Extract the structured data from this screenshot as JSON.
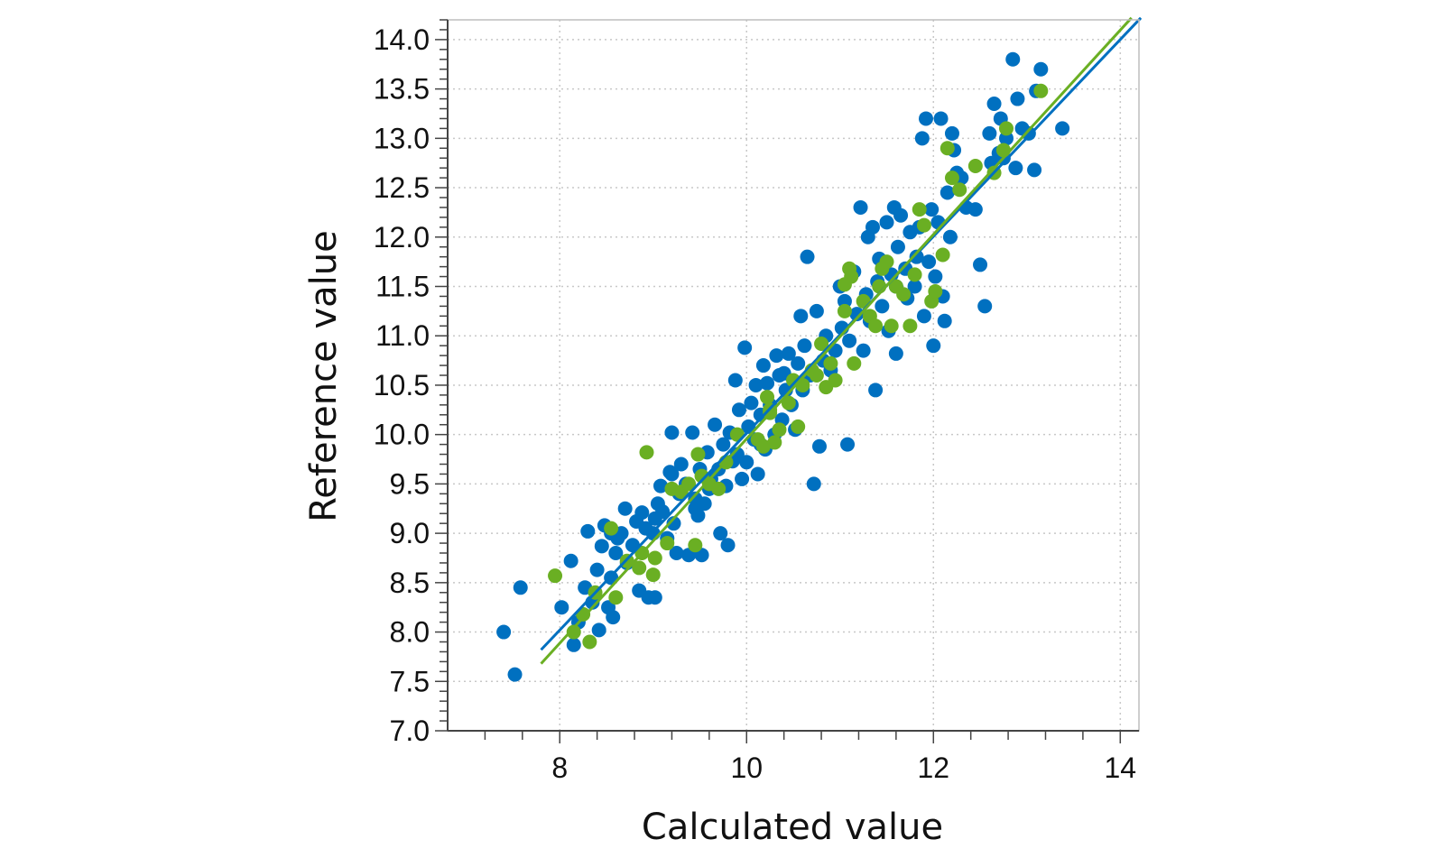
{
  "chart_data": {
    "type": "scatter",
    "xlabel": "Calculated value",
    "ylabel": "Reference value",
    "xlim": [
      6.8,
      14.2
    ],
    "ylim": [
      7.0,
      14.2
    ],
    "xticks": [
      "8",
      "10",
      "12",
      "14"
    ],
    "yticks": [
      "7.0",
      "7.5",
      "8.0",
      "8.5",
      "9.0",
      "9.5",
      "10.0",
      "10.5",
      "11.0",
      "11.5",
      "12.0",
      "12.5",
      "13.0",
      "13.5",
      "14.0"
    ],
    "grid": true,
    "legend": "none",
    "colors": {
      "calibration": "#0070C0",
      "validation": "#6AAF23"
    },
    "series": [
      {
        "color_key": "calibration",
        "points": [
          [
            7.4,
            8.0
          ],
          [
            7.52,
            7.57
          ],
          [
            7.58,
            8.45
          ],
          [
            8.02,
            8.25
          ],
          [
            8.12,
            8.72
          ],
          [
            8.15,
            7.87
          ],
          [
            8.2,
            8.1
          ],
          [
            8.3,
            9.02
          ],
          [
            8.27,
            8.45
          ],
          [
            8.35,
            8.3
          ],
          [
            8.4,
            8.63
          ],
          [
            8.42,
            8.02
          ],
          [
            8.45,
            8.87
          ],
          [
            8.48,
            9.08
          ],
          [
            8.52,
            8.25
          ],
          [
            8.55,
            8.55
          ],
          [
            8.57,
            8.15
          ],
          [
            8.6,
            8.8
          ],
          [
            8.62,
            8.95
          ],
          [
            8.66,
            9.0
          ],
          [
            8.7,
            9.25
          ],
          [
            8.72,
            8.7
          ],
          [
            8.78,
            8.88
          ],
          [
            8.82,
            9.12
          ],
          [
            8.85,
            8.42
          ],
          [
            8.88,
            9.21
          ],
          [
            8.92,
            9.05
          ],
          [
            8.95,
            8.35
          ],
          [
            9.0,
            9.0
          ],
          [
            9.02,
            9.15
          ],
          [
            9.02,
            8.35
          ],
          [
            9.05,
            9.3
          ],
          [
            9.08,
            9.48
          ],
          [
            9.1,
            9.22
          ],
          [
            9.15,
            8.95
          ],
          [
            9.18,
            9.62
          ],
          [
            9.2,
            10.02
          ],
          [
            9.22,
            9.1
          ],
          [
            9.25,
            8.8
          ],
          [
            9.28,
            9.4
          ],
          [
            9.3,
            9.7
          ],
          [
            9.35,
            9.5
          ],
          [
            9.38,
            8.78
          ],
          [
            9.42,
            10.02
          ],
          [
            9.45,
            9.35
          ],
          [
            9.48,
            9.18
          ],
          [
            9.5,
            9.65
          ],
          [
            9.52,
            8.78
          ],
          [
            9.55,
            9.3
          ],
          [
            9.58,
            9.82
          ],
          [
            9.62,
            9.55
          ],
          [
            9.66,
            10.1
          ],
          [
            9.7,
            9.65
          ],
          [
            9.72,
            9.0
          ],
          [
            9.75,
            9.9
          ],
          [
            9.78,
            9.48
          ],
          [
            9.8,
            8.88
          ],
          [
            9.82,
            10.02
          ],
          [
            9.85,
            9.73
          ],
          [
            9.88,
            10.55
          ],
          [
            9.9,
            9.8
          ],
          [
            9.92,
            10.25
          ],
          [
            9.95,
            9.55
          ],
          [
            9.98,
            10.88
          ],
          [
            10.0,
            9.72
          ],
          [
            10.02,
            10.08
          ],
          [
            10.05,
            10.32
          ],
          [
            10.08,
            9.95
          ],
          [
            10.1,
            10.5
          ],
          [
            10.12,
            9.6
          ],
          [
            10.15,
            10.2
          ],
          [
            10.18,
            10.7
          ],
          [
            10.2,
            9.85
          ],
          [
            10.22,
            10.52
          ],
          [
            10.25,
            10.3
          ],
          [
            10.3,
            10.0
          ],
          [
            10.32,
            10.8
          ],
          [
            10.35,
            10.6
          ],
          [
            10.38,
            10.15
          ],
          [
            10.42,
            10.45
          ],
          [
            10.45,
            10.82
          ],
          [
            10.48,
            10.3
          ],
          [
            10.52,
            10.05
          ],
          [
            10.55,
            10.72
          ],
          [
            10.58,
            11.2
          ],
          [
            10.6,
            10.45
          ],
          [
            10.62,
            10.9
          ],
          [
            10.65,
            11.8
          ],
          [
            10.68,
            10.6
          ],
          [
            10.72,
            9.5
          ],
          [
            10.75,
            11.25
          ],
          [
            10.78,
            9.88
          ],
          [
            10.82,
            10.75
          ],
          [
            10.85,
            11.0
          ],
          [
            10.9,
            10.65
          ],
          [
            10.95,
            10.85
          ],
          [
            11.0,
            11.5
          ],
          [
            11.02,
            11.08
          ],
          [
            11.05,
            11.35
          ],
          [
            11.08,
            9.9
          ],
          [
            11.1,
            10.95
          ],
          [
            11.15,
            11.65
          ],
          [
            11.18,
            11.22
          ],
          [
            11.22,
            12.3
          ],
          [
            11.25,
            10.85
          ],
          [
            11.28,
            11.42
          ],
          [
            11.3,
            12.0
          ],
          [
            11.32,
            11.15
          ],
          [
            11.35,
            12.1
          ],
          [
            11.38,
            10.45
          ],
          [
            11.4,
            11.55
          ],
          [
            11.42,
            11.78
          ],
          [
            11.45,
            11.3
          ],
          [
            11.5,
            12.15
          ],
          [
            11.52,
            11.05
          ],
          [
            11.55,
            11.62
          ],
          [
            11.58,
            12.3
          ],
          [
            11.6,
            10.82
          ],
          [
            11.62,
            11.9
          ],
          [
            11.65,
            12.22
          ],
          [
            11.7,
            11.68
          ],
          [
            11.72,
            11.38
          ],
          [
            11.75,
            12.05
          ],
          [
            11.8,
            11.5
          ],
          [
            11.82,
            11.8
          ],
          [
            11.85,
            12.1
          ],
          [
            11.88,
            13.0
          ],
          [
            11.9,
            11.2
          ],
          [
            11.92,
            13.2
          ],
          [
            11.95,
            11.75
          ],
          [
            11.98,
            12.28
          ],
          [
            12.0,
            10.9
          ],
          [
            12.02,
            11.6
          ],
          [
            12.05,
            12.15
          ],
          [
            12.08,
            13.2
          ],
          [
            12.1,
            11.4
          ],
          [
            12.12,
            11.15
          ],
          [
            12.15,
            12.45
          ],
          [
            12.18,
            12.0
          ],
          [
            12.2,
            13.05
          ],
          [
            12.22,
            12.88
          ],
          [
            12.25,
            12.65
          ],
          [
            12.3,
            12.6
          ],
          [
            12.35,
            12.3
          ],
          [
            12.45,
            12.28
          ],
          [
            12.5,
            11.72
          ],
          [
            12.55,
            11.3
          ],
          [
            12.6,
            13.05
          ],
          [
            12.62,
            12.75
          ],
          [
            12.65,
            13.35
          ],
          [
            12.7,
            12.85
          ],
          [
            12.72,
            13.2
          ],
          [
            12.75,
            12.8
          ],
          [
            12.78,
            13.0
          ],
          [
            12.85,
            13.8
          ],
          [
            12.88,
            12.7
          ],
          [
            12.9,
            13.4
          ],
          [
            12.95,
            13.1
          ],
          [
            13.02,
            13.05
          ],
          [
            13.08,
            12.68
          ],
          [
            13.1,
            13.48
          ],
          [
            13.15,
            13.7
          ],
          [
            13.38,
            13.1
          ],
          [
            9.45,
            9.25
          ],
          [
            10.4,
            10.62
          ],
          [
            11.6,
            11.5
          ],
          [
            10.15,
            9.9
          ],
          [
            9.2,
            9.6
          ],
          [
            8.55,
            9.0
          ],
          [
            9.6,
            9.45
          ]
        ]
      },
      {
        "color_key": "validation",
        "points": [
          [
            7.95,
            8.57
          ],
          [
            8.15,
            8.0
          ],
          [
            8.25,
            8.18
          ],
          [
            8.32,
            7.9
          ],
          [
            8.38,
            8.4
          ],
          [
            8.55,
            9.05
          ],
          [
            8.6,
            8.35
          ],
          [
            8.72,
            8.72
          ],
          [
            8.85,
            8.65
          ],
          [
            8.88,
            8.8
          ],
          [
            8.93,
            9.82
          ],
          [
            9.0,
            8.58
          ],
          [
            9.02,
            8.75
          ],
          [
            9.15,
            8.9
          ],
          [
            9.2,
            9.45
          ],
          [
            9.3,
            9.42
          ],
          [
            9.38,
            9.5
          ],
          [
            9.45,
            8.88
          ],
          [
            9.48,
            9.8
          ],
          [
            9.52,
            9.58
          ],
          [
            9.6,
            9.5
          ],
          [
            9.7,
            9.45
          ],
          [
            9.78,
            9.72
          ],
          [
            9.9,
            10.0
          ],
          [
            10.12,
            9.95
          ],
          [
            10.18,
            9.88
          ],
          [
            10.22,
            10.38
          ],
          [
            10.25,
            10.22
          ],
          [
            10.3,
            9.92
          ],
          [
            10.35,
            10.05
          ],
          [
            10.45,
            10.32
          ],
          [
            10.5,
            10.55
          ],
          [
            10.55,
            10.08
          ],
          [
            10.6,
            10.5
          ],
          [
            10.7,
            10.65
          ],
          [
            10.75,
            10.6
          ],
          [
            10.8,
            10.92
          ],
          [
            10.85,
            10.48
          ],
          [
            10.9,
            10.72
          ],
          [
            10.95,
            10.55
          ],
          [
            11.05,
            11.25
          ],
          [
            11.1,
            11.68
          ],
          [
            11.12,
            11.6
          ],
          [
            11.15,
            10.72
          ],
          [
            11.25,
            11.35
          ],
          [
            11.32,
            11.2
          ],
          [
            11.38,
            11.1
          ],
          [
            11.42,
            11.5
          ],
          [
            11.45,
            11.68
          ],
          [
            11.5,
            11.75
          ],
          [
            11.55,
            11.1
          ],
          [
            11.6,
            11.5
          ],
          [
            11.68,
            11.42
          ],
          [
            11.75,
            11.1
          ],
          [
            11.8,
            11.62
          ],
          [
            11.85,
            12.28
          ],
          [
            11.9,
            12.12
          ],
          [
            11.98,
            11.35
          ],
          [
            12.02,
            11.45
          ],
          [
            12.1,
            11.82
          ],
          [
            12.15,
            12.9
          ],
          [
            12.2,
            12.6
          ],
          [
            12.28,
            12.48
          ],
          [
            12.45,
            12.72
          ],
          [
            12.65,
            12.65
          ],
          [
            12.75,
            12.88
          ],
          [
            12.78,
            13.1
          ],
          [
            13.15,
            13.48
          ],
          [
            11.05,
            11.52
          ],
          [
            10.25,
            10.25
          ]
        ]
      }
    ],
    "regression_lines": [
      {
        "color_key": "calibration",
        "x": [
          7.8,
          14.22
        ],
        "y": [
          7.82,
          14.22
        ]
      },
      {
        "color_key": "validation",
        "x": [
          7.8,
          14.12
        ],
        "y": [
          7.68,
          14.22
        ]
      }
    ]
  }
}
